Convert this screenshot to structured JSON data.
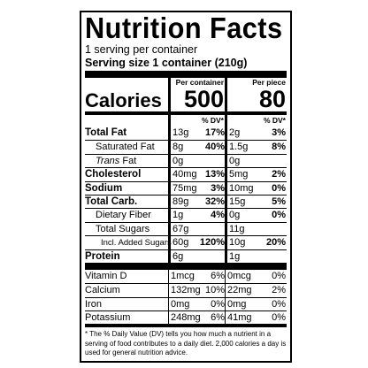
{
  "title": "Nutrition Facts",
  "servings": "1 serving per container",
  "serving_size": "Serving size 1 container (210g)",
  "columns": [
    "Per container",
    "Per piece"
  ],
  "calories": {
    "label": "Calories",
    "values": [
      "500",
      "80"
    ]
  },
  "dv_headers": [
    "% DV*",
    "% DV*"
  ],
  "nutrients": [
    {
      "label": "Total Fat",
      "style": "bold",
      "amounts": [
        "13g",
        "2g"
      ],
      "dvs": [
        "17%",
        "3%"
      ]
    },
    {
      "label": "Saturated Fat",
      "style": "sub",
      "amounts": [
        "8g",
        "1.5g"
      ],
      "dvs": [
        "40%",
        "8%"
      ]
    },
    {
      "label_italic": "Trans",
      "label": "Fat",
      "style": "sub",
      "amounts": [
        "0g",
        "0g"
      ],
      "dvs": []
    },
    {
      "label": "Cholesterol",
      "style": "bold",
      "amounts": [
        "40mg",
        "5mg"
      ],
      "dvs": [
        "13%",
        "2%"
      ]
    },
    {
      "label": "Sodium",
      "style": "bold",
      "amounts": [
        "75mg",
        "10mg"
      ],
      "dvs": [
        "3%",
        "0%"
      ]
    },
    {
      "label": "Total Carb.",
      "style": "bold",
      "amounts": [
        "89g",
        "15g"
      ],
      "dvs": [
        "32%",
        "5%"
      ]
    },
    {
      "label": "Dietary Fiber",
      "style": "sub",
      "amounts": [
        "1g",
        "0g"
      ],
      "dvs": [
        "4%",
        "0%"
      ]
    },
    {
      "label": "Total Sugars",
      "style": "sub",
      "amounts": [
        "67g",
        "11g"
      ],
      "dvs": []
    },
    {
      "label": "Incl. Added Sugars",
      "style": "sub2",
      "amounts": [
        "60g",
        "10g"
      ],
      "dvs": [
        "120%",
        "20%"
      ]
    },
    {
      "label": "Protein",
      "style": "bold",
      "amounts": [
        "6g",
        "1g"
      ],
      "dvs": []
    }
  ],
  "vitamins": [
    {
      "label": "Vitamin D",
      "amounts": [
        "1mcg",
        "0mcg"
      ],
      "dvs": [
        "6%",
        "0%"
      ]
    },
    {
      "label": "Calcium",
      "amounts": [
        "132mg",
        "22mg"
      ],
      "dvs": [
        "10%",
        "2%"
      ]
    },
    {
      "label": "Iron",
      "amounts": [
        "0mg",
        "0mg"
      ],
      "dvs": [
        "0%",
        "0%"
      ]
    },
    {
      "label": "Potassium",
      "amounts": [
        "248mg",
        "41mg"
      ],
      "dvs": [
        "6%",
        "0%"
      ]
    }
  ],
  "footnote": "* The % Daily Value (DV) tells you how much a nutrient in a serving of food contributes to a daily diet. 2,000 calories a day is used for general nutrition advice."
}
